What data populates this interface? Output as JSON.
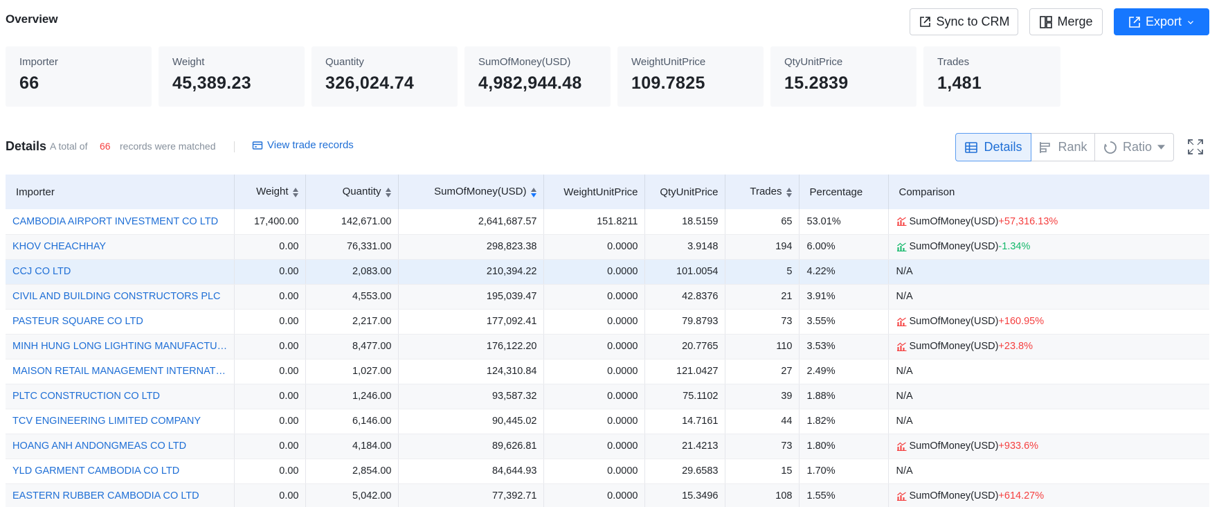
{
  "overview": {
    "title": "Overview"
  },
  "toolbar": {
    "sync_label": "Sync to CRM",
    "merge_label": "Merge",
    "export_label": "Export"
  },
  "stats": [
    {
      "label": "Importer",
      "value": "66"
    },
    {
      "label": "Weight",
      "value": "45,389.23"
    },
    {
      "label": "Quantity",
      "value": "326,024.74"
    },
    {
      "label": "SumOfMoney(USD)",
      "value": "4,982,944.48"
    },
    {
      "label": "WeightUnitPrice",
      "value": "109.7825"
    },
    {
      "label": "QtyUnitPrice",
      "value": "15.2839"
    },
    {
      "label": "Trades",
      "value": "1,481"
    }
  ],
  "details": {
    "title": "Details",
    "prefix": "A total of",
    "count": "66",
    "suffix": "records were matched",
    "view_link": "View trade records"
  },
  "views": {
    "details": "Details",
    "rank": "Rank",
    "ratio": "Ratio"
  },
  "colors": {
    "accent": "#1677ff",
    "up": "#f53f3f",
    "down": "#14b86a"
  },
  "table": {
    "columns": [
      "Importer",
      "Weight",
      "Quantity",
      "SumOfMoney(USD)",
      "WeightUnitPrice",
      "QtyUnitPrice",
      "Trades",
      "Percentage",
      "Comparison"
    ],
    "rows": [
      {
        "importer": "CAMBODIA AIRPORT INVESTMENT CO LTD",
        "weight": "17,400.00",
        "quantity": "142,671.00",
        "money": "2,641,687.57",
        "wup": "151.8211",
        "qup": "18.5159",
        "trades": "65",
        "pct": "53.01%",
        "cmp_label": "SumOfMoney(USD)",
        "cmp_change": "+57,316.13%",
        "cmp_dir": "up"
      },
      {
        "importer": "KHOV CHEACHHAY",
        "weight": "0.00",
        "quantity": "76,331.00",
        "money": "298,823.38",
        "wup": "0.0000",
        "qup": "3.9148",
        "trades": "194",
        "pct": "6.00%",
        "cmp_label": "SumOfMoney(USD)",
        "cmp_change": "-1.34%",
        "cmp_dir": "down"
      },
      {
        "importer": "CCJ CO LTD",
        "weight": "0.00",
        "quantity": "2,083.00",
        "money": "210,394.22",
        "wup": "0.0000",
        "qup": "101.0054",
        "trades": "5",
        "pct": "4.22%",
        "cmp_label": "N/A",
        "cmp_change": "",
        "cmp_dir": "none"
      },
      {
        "importer": "CIVIL AND BUILDING CONSTRUCTORS PLC",
        "weight": "0.00",
        "quantity": "4,553.00",
        "money": "195,039.47",
        "wup": "0.0000",
        "qup": "42.8376",
        "trades": "21",
        "pct": "3.91%",
        "cmp_label": "N/A",
        "cmp_change": "",
        "cmp_dir": "none"
      },
      {
        "importer": "PASTEUR SQUARE CO LTD",
        "weight": "0.00",
        "quantity": "2,217.00",
        "money": "177,092.41",
        "wup": "0.0000",
        "qup": "79.8793",
        "trades": "73",
        "pct": "3.55%",
        "cmp_label": "SumOfMoney(USD)",
        "cmp_change": "+160.95%",
        "cmp_dir": "up"
      },
      {
        "importer": "MINH HUNG LONG LIGHTING MANUFACTURE CO L...",
        "weight": "0.00",
        "quantity": "8,477.00",
        "money": "176,122.20",
        "wup": "0.0000",
        "qup": "20.7765",
        "trades": "110",
        "pct": "3.53%",
        "cmp_label": "SumOfMoney(USD)",
        "cmp_change": "+23.8%",
        "cmp_dir": "up"
      },
      {
        "importer": "MAISON RETAIL MANAGEMENT INTERNATIONAL ...",
        "weight": "0.00",
        "quantity": "1,027.00",
        "money": "124,310.84",
        "wup": "0.0000",
        "qup": "121.0427",
        "trades": "27",
        "pct": "2.49%",
        "cmp_label": "N/A",
        "cmp_change": "",
        "cmp_dir": "none"
      },
      {
        "importer": "PLTC CONSTRUCTION CO LTD",
        "weight": "0.00",
        "quantity": "1,246.00",
        "money": "93,587.32",
        "wup": "0.0000",
        "qup": "75.1102",
        "trades": "39",
        "pct": "1.88%",
        "cmp_label": "N/A",
        "cmp_change": "",
        "cmp_dir": "none"
      },
      {
        "importer": "TCV ENGINEERING LIMITED COMPANY",
        "weight": "0.00",
        "quantity": "6,146.00",
        "money": "90,445.02",
        "wup": "0.0000",
        "qup": "14.7161",
        "trades": "44",
        "pct": "1.82%",
        "cmp_label": "N/A",
        "cmp_change": "",
        "cmp_dir": "none"
      },
      {
        "importer": "HOANG ANH ANDONGMEAS CO LTD",
        "weight": "0.00",
        "quantity": "4,184.00",
        "money": "89,626.81",
        "wup": "0.0000",
        "qup": "21.4213",
        "trades": "73",
        "pct": "1.80%",
        "cmp_label": "SumOfMoney(USD)",
        "cmp_change": "+933.6%",
        "cmp_dir": "up"
      },
      {
        "importer": "YLD GARMENT CAMBODIA CO LTD",
        "weight": "0.00",
        "quantity": "2,854.00",
        "money": "84,644.93",
        "wup": "0.0000",
        "qup": "29.6583",
        "trades": "15",
        "pct": "1.70%",
        "cmp_label": "N/A",
        "cmp_change": "",
        "cmp_dir": "none"
      },
      {
        "importer": "EASTERN RUBBER CAMBODIA CO LTD",
        "weight": "0.00",
        "quantity": "5,042.00",
        "money": "77,392.71",
        "wup": "0.0000",
        "qup": "15.3496",
        "trades": "108",
        "pct": "1.55%",
        "cmp_label": "SumOfMoney(USD)",
        "cmp_change": "+614.27%",
        "cmp_dir": "up"
      }
    ]
  }
}
